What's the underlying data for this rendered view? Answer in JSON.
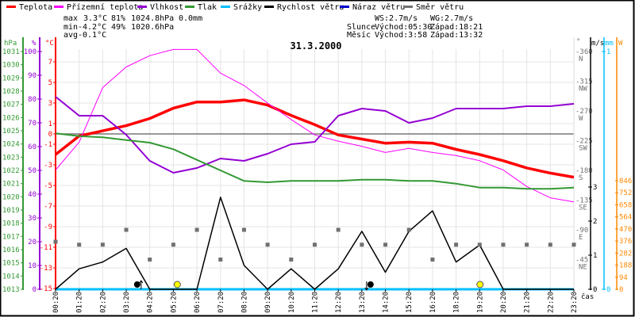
{
  "colors": {
    "temperature": "#ff0000",
    "apparent_temperature": "#ff00ff",
    "humidity": "#9400d3",
    "pressure": "#339933",
    "precipitation": "#00bfff",
    "wind_speed": "#000000",
    "wind_gust": "#0000cc",
    "wind_direction": "#707070",
    "solar": "#ff8800",
    "max": "#ff0000",
    "min": "#0000cc"
  },
  "legend": [
    {
      "label": "Teplota",
      "color": "#ff0000"
    },
    {
      "label": "Přízemní teplota",
      "color": "#ff00ff"
    },
    {
      "label": "Vlhkost",
      "color": "#9400d3"
    },
    {
      "label": "Tlak",
      "color": "#339933"
    },
    {
      "label": "Srážky",
      "color": "#00bfff"
    },
    {
      "label": "Rychlost větru",
      "color": "#000000"
    },
    {
      "label": "Náraz větru",
      "color": "#0000cc"
    },
    {
      "label": "Směr větru",
      "color": "#707070"
    }
  ],
  "stats": {
    "max_label": "max",
    "max_temp": "3.3°C",
    "max_hum": "81%",
    "max_pres": "1024.8hPa",
    "rain": "0.0mm",
    "min_label": "min",
    "min_temp": "-4.2°C",
    "min_hum": "49%",
    "min_pres": "1020.6hPa",
    "avg_label": "avg",
    "avg_temp": "-0.1°C",
    "ws": "WS:2.7m/s",
    "wg": "WG:2.7m/s",
    "sun_label": "Slunce",
    "sun_rise": "Východ:05:30",
    "sun_set": "Západ:18:21",
    "moon_label": "Měsíc",
    "moon_rise": "Východ:3:58",
    "moon_set": "Západ:13:32"
  },
  "chart_data": {
    "type": "line",
    "title": "31.3.2000",
    "xlabel": "čas",
    "x": [
      "00:20",
      "01:20",
      "02:20",
      "03:20",
      "04:20",
      "05:20",
      "06:20",
      "07:20",
      "08:20",
      "09:20",
      "10:20",
      "11:20",
      "12:20",
      "13:20",
      "14:20",
      "15:20",
      "16:20",
      "18:20",
      "19:20",
      "20:20",
      "21:20",
      "22:20",
      "23:20"
    ],
    "axes": {
      "pressure": {
        "unit": "hPa",
        "range": [
          1013,
          1031
        ],
        "ticks": [
          1013,
          1014,
          1015,
          1016,
          1017,
          1018,
          1019,
          1020,
          1021,
          1022,
          1023,
          1024,
          1025,
          1026,
          1027,
          1028,
          1029,
          1030,
          1031
        ]
      },
      "humidity": {
        "unit": "%",
        "range": [
          0,
          100
        ],
        "ticks": [
          0,
          10,
          20,
          30,
          40,
          50,
          60,
          70,
          80,
          90,
          100
        ]
      },
      "temperature": {
        "unit": "°C",
        "range": [
          -15,
          8
        ],
        "ticks": [
          7,
          5,
          3,
          1,
          0,
          -1,
          -3,
          -5,
          -7,
          -9,
          -11,
          -13,
          -15
        ]
      },
      "wind_direction": {
        "unit": "°",
        "range": [
          0,
          360
        ],
        "ticks": [
          {
            "v": 360,
            "c": "N"
          },
          {
            "v": 315,
            "c": "NW"
          },
          {
            "v": 270,
            "c": "W"
          },
          {
            "v": 225,
            "c": "SW"
          },
          {
            "v": 180,
            "c": "S"
          },
          {
            "v": 135,
            "c": "SE"
          },
          {
            "v": 90,
            "c": "E"
          },
          {
            "v": 45,
            "c": "NE"
          }
        ]
      },
      "wind_speed": {
        "unit": "m/s",
        "range": [
          0,
          7
        ],
        "ticks": [
          0,
          1,
          2,
          3
        ]
      },
      "precipitation": {
        "unit": "mm",
        "range": [
          0,
          1
        ],
        "ticks": [
          0,
          1
        ]
      },
      "solar": {
        "unit": "W",
        "range": [
          0,
          846
        ],
        "ticks": [
          0,
          94,
          188,
          282,
          376,
          470,
          564,
          658,
          752,
          846
        ]
      }
    },
    "series": [
      {
        "name": "Teplota",
        "key": "temperature",
        "axis": "temperature",
        "values": [
          -2.0,
          -0.2,
          0.3,
          0.8,
          1.5,
          2.5,
          3.1,
          3.1,
          3.3,
          2.8,
          1.8,
          0.9,
          -0.1,
          -0.5,
          -0.9,
          -0.8,
          -0.9,
          -1.5,
          -2.0,
          -2.6,
          -3.3,
          -3.8,
          -4.2
        ]
      },
      {
        "name": "Přízemní teplota",
        "key": "apparent_temperature",
        "axis": "temperature",
        "values": [
          -3.5,
          -0.8,
          4.5,
          6.5,
          7.6,
          8.2,
          8.2,
          5.9,
          4.7,
          3.0,
          1.4,
          -0.1,
          -0.7,
          -1.2,
          -1.8,
          -1.4,
          -1.8,
          -2.1,
          -2.6,
          -3.5,
          -5.1,
          -6.2,
          -6.6
        ]
      },
      {
        "name": "Vlhkost",
        "key": "humidity",
        "axis": "humidity",
        "values": [
          81,
          73,
          73,
          65,
          54,
          49,
          51,
          55,
          54,
          57,
          61,
          62,
          73,
          76,
          75,
          70,
          72,
          76,
          76,
          76,
          77,
          77,
          78
        ]
      },
      {
        "name": "Tlak",
        "key": "pressure",
        "axis": "pressure",
        "values": [
          1024.8,
          1024.6,
          1024.5,
          1024.3,
          1024.1,
          1023.6,
          1022.8,
          1022.0,
          1021.2,
          1021.1,
          1021.2,
          1021.2,
          1021.2,
          1021.3,
          1021.3,
          1021.2,
          1021.2,
          1021.0,
          1020.7,
          1020.7,
          1020.6,
          1020.6,
          1020.7
        ]
      },
      {
        "name": "Srážky",
        "key": "precipitation",
        "axis": "precipitation",
        "values": [
          0,
          0,
          0,
          0,
          0,
          0,
          0,
          0,
          0,
          0,
          0,
          0,
          0,
          0,
          0,
          0,
          0,
          0,
          0,
          0,
          0,
          0,
          0
        ]
      },
      {
        "name": "Rychlost větru",
        "key": "wind_speed",
        "axis": "wind_speed",
        "values": [
          0,
          0.6,
          0.8,
          1.2,
          0,
          0,
          0,
          2.7,
          0.7,
          0,
          0.6,
          0,
          0.6,
          1.7,
          0.5,
          1.7,
          2.3,
          0.8,
          1.3,
          0,
          0,
          0,
          0
        ]
      },
      {
        "name": "Směr větru",
        "key": "wind_direction",
        "axis": "wind_direction",
        "values": [
          72,
          67.5,
          67.5,
          90,
          45,
          67.5,
          90,
          45,
          90,
          67.5,
          45,
          67.5,
          90,
          67.5,
          67.5,
          90,
          45,
          67.5,
          67.5,
          67.5,
          67.5,
          67.5,
          67.5
        ]
      }
    ],
    "markers": [
      {
        "type": "sunrise",
        "time": "05:30"
      },
      {
        "type": "sunset",
        "time": "18:21"
      },
      {
        "type": "moonrise",
        "time": "3:58"
      },
      {
        "type": "moonset",
        "time": "13:32"
      }
    ],
    "grid": true,
    "legend_position": "top"
  }
}
